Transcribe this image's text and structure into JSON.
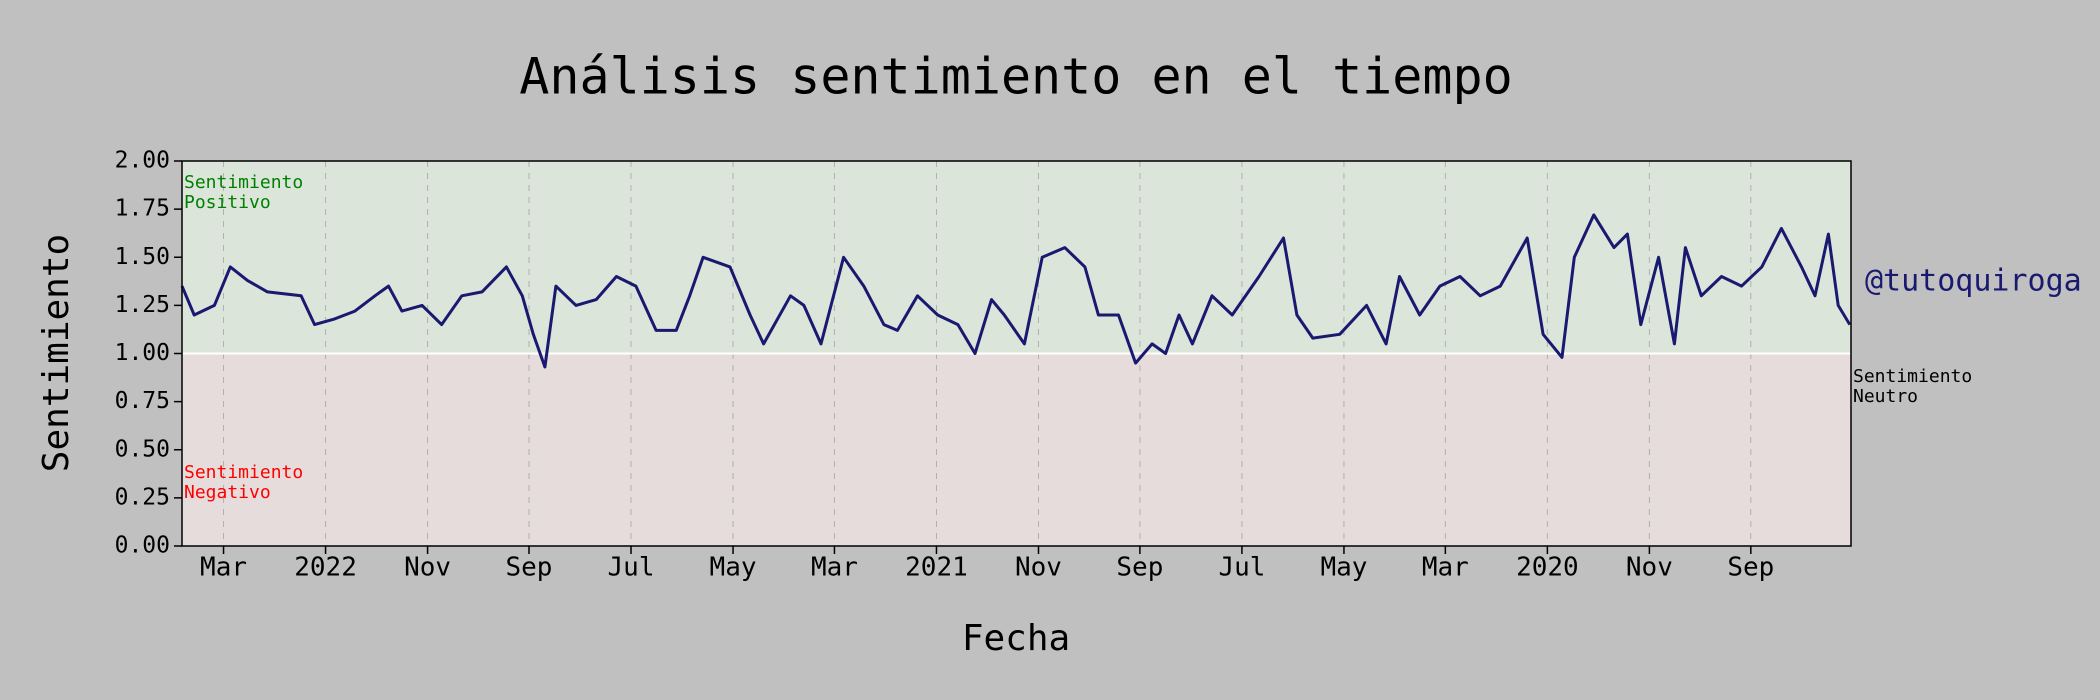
{
  "chart_data": {
    "type": "line",
    "title": "Análisis sentimiento en el tiempo",
    "xlabel": "Fecha",
    "ylabel": "Sentimiento",
    "watermark": "@tutoquiroga",
    "color": "#191970",
    "threshold": 1,
    "region_colors": {
      "above": "#dbe5da",
      "below": "#e6dcdc",
      "line": "#ffffff"
    },
    "annotations": [
      {
        "text": [
          "Sentimiento",
          "Positivo"
        ],
        "color": "#008000"
      },
      {
        "text": [
          "Sentimiento",
          "Negativo"
        ],
        "color": "#ff0000"
      },
      {
        "text": [
          "Sentimiento",
          "Neutro"
        ],
        "color": "#000000"
      }
    ],
    "xlim": [
      2022.235,
      2019.503
    ],
    "xticks": [
      {
        "value": 2022.167,
        "label": "Mar"
      },
      {
        "value": 2022.0,
        "label": "2022"
      },
      {
        "value": 2021.833,
        "label": "Nov"
      },
      {
        "value": 2021.667,
        "label": "Sep"
      },
      {
        "value": 2021.5,
        "label": "Jul"
      },
      {
        "value": 2021.333,
        "label": "May"
      },
      {
        "value": 2021.167,
        "label": "Mar"
      },
      {
        "value": 2021.0,
        "label": "2021"
      },
      {
        "value": 2020.833,
        "label": "Nov"
      },
      {
        "value": 2020.667,
        "label": "Sep"
      },
      {
        "value": 2020.5,
        "label": "Jul"
      },
      {
        "value": 2020.333,
        "label": "May"
      },
      {
        "value": 2020.167,
        "label": "Mar"
      },
      {
        "value": 2020.0,
        "label": "2020"
      },
      {
        "value": 2019.833,
        "label": "Nov"
      },
      {
        "value": 2019.667,
        "label": "Sep"
      }
    ],
    "ylim": [
      0,
      2
    ],
    "yticks": [
      {
        "value": 0,
        "label": "0.00"
      },
      {
        "value": 0.25,
        "label": "0.25"
      },
      {
        "value": 0.5,
        "label": "0.50"
      },
      {
        "value": 0.75,
        "label": "0.75"
      },
      {
        "value": 1,
        "label": "1.00"
      },
      {
        "value": 1.25,
        "label": "1.25"
      },
      {
        "value": 1.5,
        "label": "1.50"
      },
      {
        "value": 1.75,
        "label": "1.75"
      },
      {
        "value": 2,
        "label": "2.00"
      }
    ],
    "grid": true,
    "x": [
      2022.235,
      2022.215,
      2022.182,
      2022.156,
      2022.128,
      2022.095,
      2022.04,
      2022.018,
      2021.985,
      2021.952,
      2021.919,
      2021.897,
      2021.875,
      2021.842,
      2021.81,
      2021.777,
      2021.744,
      2021.704,
      2021.678,
      2021.66,
      2021.641,
      2021.623,
      2021.59,
      2021.557,
      2021.524,
      2021.492,
      2021.459,
      2021.426,
      2021.404,
      2021.382,
      2021.338,
      2021.305,
      2021.283,
      2021.239,
      2021.217,
      2021.189,
      2021.152,
      2021.119,
      2021.086,
      2021.064,
      2021.031,
      2020.998,
      2020.965,
      2020.937,
      2020.91,
      2020.889,
      2020.856,
      2020.827,
      2020.79,
      2020.757,
      2020.735,
      2020.702,
      2020.674,
      2020.647,
      2020.625,
      2020.603,
      2020.581,
      2020.549,
      2020.516,
      2020.472,
      2020.432,
      2020.41,
      2020.384,
      2020.34,
      2020.296,
      2020.264,
      2020.242,
      2020.209,
      2020.176,
      2020.143,
      2020.11,
      2020.077,
      2020.033,
      2020.007,
      2019.976,
      2019.956,
      2019.924,
      2019.891,
      2019.869,
      2019.847,
      2019.818,
      2019.792,
      2019.774,
      2019.748,
      2019.715,
      2019.682,
      2019.649,
      2019.617,
      2019.584,
      2019.562,
      2019.54,
      2019.524,
      2019.505
    ],
    "values": [
      1.35,
      1.2,
      1.25,
      1.45,
      1.38,
      1.32,
      1.3,
      1.15,
      1.18,
      1.22,
      1.3,
      1.35,
      1.22,
      1.25,
      1.15,
      1.3,
      1.32,
      1.45,
      1.3,
      1.1,
      0.93,
      1.35,
      1.25,
      1.28,
      1.4,
      1.35,
      1.12,
      1.12,
      1.3,
      1.5,
      1.45,
      1.2,
      1.05,
      1.3,
      1.25,
      1.05,
      1.5,
      1.35,
      1.15,
      1.12,
      1.3,
      1.2,
      1.15,
      1.0,
      1.28,
      1.2,
      1.05,
      1.5,
      1.55,
      1.45,
      1.2,
      1.2,
      0.95,
      1.05,
      1.0,
      1.2,
      1.05,
      1.3,
      1.2,
      1.4,
      1.6,
      1.2,
      1.08,
      1.1,
      1.25,
      1.05,
      1.4,
      1.2,
      1.35,
      1.4,
      1.3,
      1.35,
      1.6,
      1.1,
      0.98,
      1.5,
      1.72,
      1.55,
      1.62,
      1.15,
      1.5,
      1.05,
      1.55,
      1.3,
      1.4,
      1.35,
      1.45,
      1.65,
      1.45,
      1.3,
      1.62,
      1.25,
      1.15
    ]
  }
}
